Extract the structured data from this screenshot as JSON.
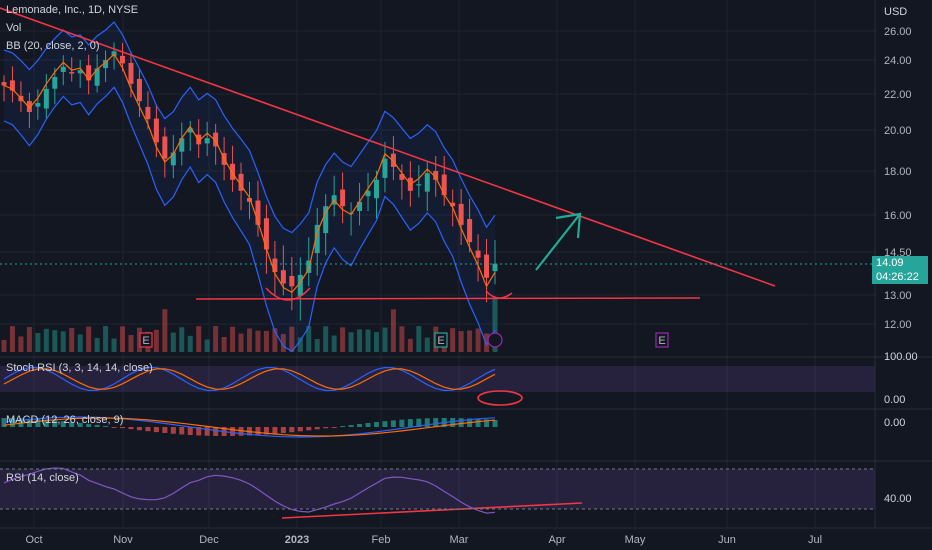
{
  "header": {
    "title": "Lemonade, Inc., 1D, NYSE",
    "vol": "Vol",
    "bb": "BB (20, close, 2, 0)",
    "currency": "USD"
  },
  "last_price": {
    "value": "14.09",
    "countdown": "04:26:22"
  },
  "panes": {
    "stoch": {
      "label": "Stoch RSI (3, 3, 14, 14, close)",
      "ticks": [
        "100.00",
        "0.00"
      ]
    },
    "macd": {
      "label": "MACD (12, 26, close, 9)",
      "ticks": [
        "0.00"
      ]
    },
    "rsi": {
      "label": "RSI (14, close)",
      "ticks": [
        "40.00"
      ]
    }
  },
  "colors": {
    "up": "#26a69a",
    "down": "#ef5350",
    "bb": "#2962ff",
    "basis": "#ff6d00",
    "trend": "#f23645",
    "arrow": "#22ab94",
    "stoch": "#9c27b0"
  },
  "chart_data": {
    "type": "candlestick",
    "price_ticks": [
      "26.00",
      "24.00",
      "22.00",
      "20.00",
      "18.00",
      "16.00",
      "14.50",
      "13.00",
      "12.00"
    ],
    "x_labels": [
      "Oct",
      "Nov",
      "Dec",
      "2023",
      "Feb",
      "Mar",
      "Apr",
      "May",
      "Jun",
      "Jul"
    ],
    "close_series": [
      22.5,
      22.2,
      21.6,
      21.0,
      21.5,
      22.3,
      23.0,
      23.6,
      23.2,
      23.4,
      22.8,
      23.5,
      24.0,
      24.6,
      23.8,
      22.6,
      21.6,
      20.6,
      19.4,
      18.6,
      18.9,
      19.6,
      20.1,
      19.3,
      19.6,
      19.2,
      18.3,
      17.6,
      17.1,
      16.6,
      15.6,
      14.6,
      13.8,
      13.4,
      13.3,
      13.7,
      14.2,
      15.6,
      16.4,
      16.9,
      16.4,
      16.1,
      16.6,
      17.1,
      17.6,
      18.6,
      18.2,
      17.6,
      17.1,
      17.4,
      17.9,
      17.6,
      16.9,
      16.4,
      15.6,
      14.9,
      14.3,
      13.6,
      14.09
    ],
    "earnings_markers": [
      "E",
      "E",
      "E"
    ]
  }
}
